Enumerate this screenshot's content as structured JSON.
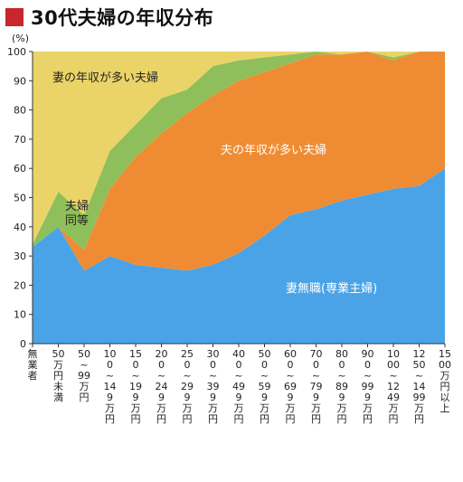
{
  "title": "30代夫婦の年収分布",
  "unit_label": "(%)",
  "colors": {
    "title_marker": "#c8252c",
    "wife_no_job": "#4aa3e6",
    "husband_higher": "#ef8c33",
    "equal": "#8fbf5a",
    "wife_higher": "#ead468"
  },
  "chart_data": {
    "type": "area",
    "stacked": true,
    "title": "30代夫婦の年収分布",
    "ylabel": "(%)",
    "xlabel": "",
    "ylim": [
      0,
      100
    ],
    "yticks": [
      0,
      10,
      20,
      30,
      40,
      50,
      60,
      70,
      80,
      90,
      100
    ],
    "categories": [
      "無業者",
      "50万円未満",
      "50~99万円",
      "100~149万円",
      "150~199万円",
      "200~249万円",
      "250~299万円",
      "300~399万円",
      "400~499万円",
      "500~599万円",
      "600~699万円",
      "700~799万円",
      "800~899万円",
      "900~999万円",
      "1000~1249万円",
      "1250~1499万円",
      "1500万円以上"
    ],
    "category_labels": [
      "無業者",
      "50万円未満",
      "50~99万円",
      "100~149万円",
      "150~199万円",
      "200~249万円",
      "250~299万円",
      "300~399万円",
      "400~499万円",
      "500~599万円",
      "600~699万円",
      "700~799万円",
      "800~899万円",
      "900~999万円",
      "1000~1249万円",
      "1250~1499万円",
      "1500万円以上"
    ],
    "series": [
      {
        "name": "妻無職(専業主婦)",
        "values": [
          33,
          40,
          25,
          30,
          27,
          26,
          25,
          27,
          31,
          37,
          44,
          46,
          49,
          51,
          53,
          54,
          60
        ]
      },
      {
        "name": "夫の年収が多い夫婦",
        "values": [
          0,
          0,
          7,
          23,
          37,
          46,
          54,
          58,
          59,
          56,
          52,
          53,
          50,
          49,
          44,
          46,
          40
        ]
      },
      {
        "name": "夫婦同等",
        "values": [
          1,
          12,
          12,
          13,
          11,
          12,
          8,
          10,
          7,
          5,
          3,
          1,
          0,
          0,
          1,
          0,
          0
        ]
      },
      {
        "name": "妻の年収が多い夫婦",
        "values": [
          66,
          48,
          56,
          34,
          25,
          16,
          13,
          5,
          3,
          2,
          1,
          0,
          1,
          0,
          2,
          0,
          0
        ]
      }
    ],
    "annotations": [
      {
        "text": "妻の年収が多い夫婦"
      },
      {
        "text": "夫の年収が多い夫婦"
      },
      {
        "text": "夫婦同等"
      },
      {
        "text": "妻無職(専業主婦)"
      }
    ],
    "grid": false,
    "legend": "inline-labels"
  }
}
